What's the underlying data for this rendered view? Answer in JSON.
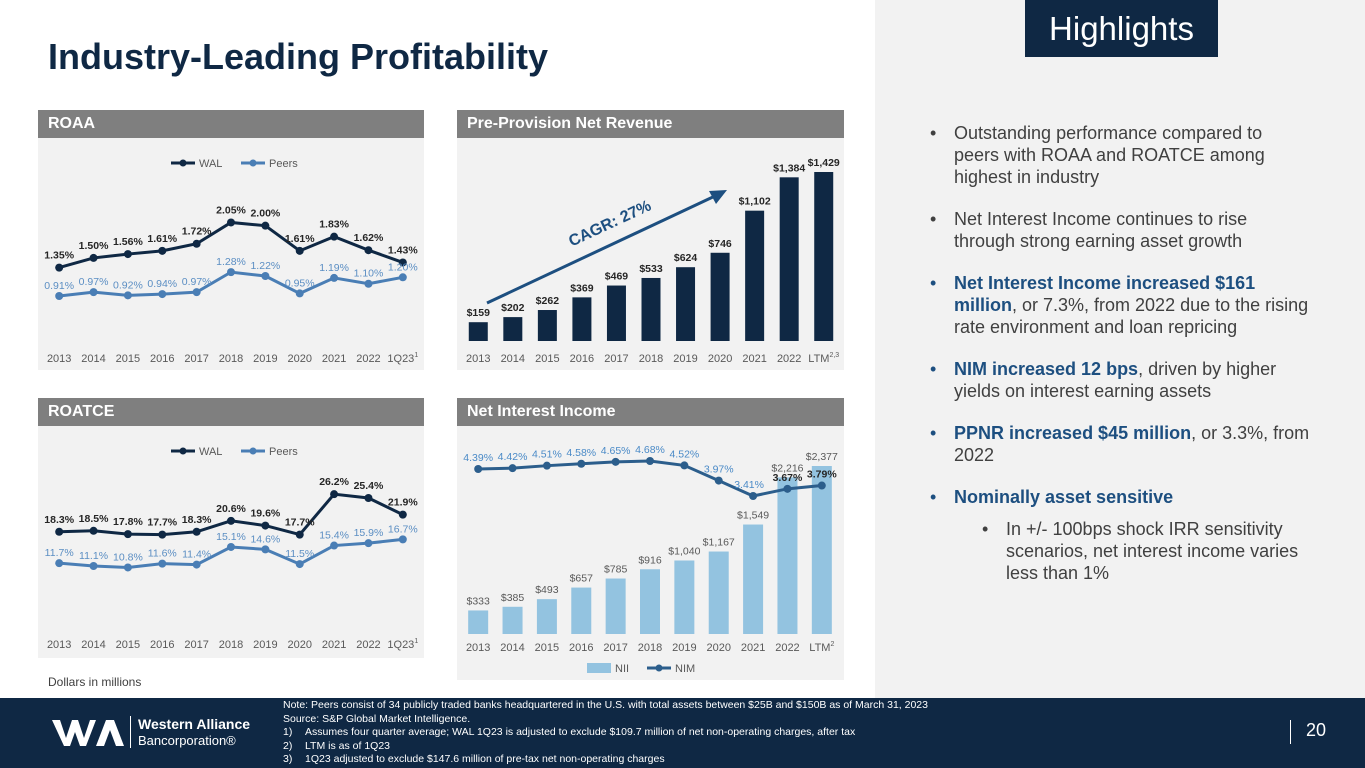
{
  "page": {
    "title": "Industry-Leading Profitability",
    "tag": "Highlights",
    "units_note": "Dollars in millions",
    "page_number": "20"
  },
  "colors": {
    "navy": "#0f2844",
    "wal_line": "#0f2844",
    "peers_line": "#4a7eb5",
    "peers_label": "#5b8ec3",
    "nii_bar": "#93c3e0",
    "nim_line": "#2c5e8c",
    "nim_label": "#4a8ac7",
    "panel_header": "#7f7f7f",
    "chart_bg": "#f2f2f2",
    "cagr": "#1d4f80"
  },
  "bullets": [
    {
      "bold": "",
      "text": "Outstanding performance compared to peers with ROAA and ROATCE among highest in industry"
    },
    {
      "bold": "",
      "text": "Net Interest Income continues to rise through strong earning asset growth"
    },
    {
      "bold": "Net Interest Income increased $161 million",
      "text": ", or 7.3%, from 2022 due to the rising rate environment and loan repricing"
    },
    {
      "bold": "NIM increased 12 bps",
      "text": ", driven by higher yields on interest earning assets"
    },
    {
      "bold": "PPNR increased $45 million",
      "text": ", or 3.3%, from 2022"
    },
    {
      "bold": "Nominally asset sensitive",
      "text": ""
    }
  ],
  "sub_bullet": "In +/- 100bps shock IRR sensitivity scenarios, net interest income varies less than 1%",
  "footer": {
    "company_line1": "Western Alliance",
    "company_line2": "Bancorporation®",
    "note_intro": "Note: Peers consist of 34 publicly traded banks headquartered in the U.S. with total assets between $25B and $150B as of March 31, 2023",
    "source": "Source: S&P Global Market Intelligence.",
    "notes": [
      {
        "num": "1)",
        "text": "Assumes four quarter average; WAL 1Q23 is adjusted to exclude $109.7 million of net non-operating charges, after tax"
      },
      {
        "num": "2)",
        "text": "LTM is as of 1Q23"
      },
      {
        "num": "3)",
        "text": "1Q23 adjusted to exclude $147.6 million of pre-tax net non-operating charges"
      }
    ]
  },
  "chart_data": [
    {
      "id": "roaa",
      "type": "line",
      "title": "ROAA",
      "categories": [
        "2013",
        "2014",
        "2015",
        "2016",
        "2017",
        "2018",
        "2019",
        "2020",
        "2021",
        "2022",
        "1Q23"
      ],
      "category_superscripts": {
        "10": "1"
      },
      "series": [
        {
          "name": "WAL",
          "values": [
            1.35,
            1.5,
            1.56,
            1.61,
            1.72,
            2.05,
            2.0,
            1.61,
            1.83,
            1.62,
            1.43
          ],
          "labels": [
            "1.35%",
            "1.50%",
            "1.56%",
            "1.61%",
            "1.72%",
            "2.05%",
            "2.00%",
            "1.61%",
            "1.83%",
            "1.62%",
            "1.43%"
          ]
        },
        {
          "name": "Peers",
          "values": [
            0.91,
            0.97,
            0.92,
            0.94,
            0.97,
            1.28,
            1.22,
            0.95,
            1.19,
            1.1,
            1.2
          ],
          "labels": [
            "0.91%",
            "0.97%",
            "0.92%",
            "0.94%",
            "0.97%",
            "1.28%",
            "1.22%",
            "0.95%",
            "1.19%",
            "1.10%",
            "1.20%"
          ]
        }
      ],
      "legend": "top-center"
    },
    {
      "id": "ppnr",
      "type": "bar",
      "title": "Pre-Provision Net Revenue",
      "categories": [
        "2013",
        "2014",
        "2015",
        "2016",
        "2017",
        "2018",
        "2019",
        "2020",
        "2021",
        "2022",
        "LTM"
      ],
      "category_superscripts": {
        "10": "2,3"
      },
      "values": [
        159,
        202,
        262,
        369,
        469,
        533,
        624,
        746,
        1102,
        1384,
        1429
      ],
      "labels": [
        "$159",
        "$202",
        "$262",
        "$369",
        "$469",
        "$533",
        "$624",
        "$746",
        "$1,102",
        "$1,384",
        "$1,429"
      ],
      "annotation": "CAGR: 27%"
    },
    {
      "id": "roatce",
      "type": "line",
      "title": "ROATCE",
      "categories": [
        "2013",
        "2014",
        "2015",
        "2016",
        "2017",
        "2018",
        "2019",
        "2020",
        "2021",
        "2022",
        "1Q23"
      ],
      "category_superscripts": {
        "10": "1"
      },
      "series": [
        {
          "name": "WAL",
          "values": [
            18.3,
            18.5,
            17.8,
            17.7,
            18.3,
            20.6,
            19.6,
            17.7,
            26.2,
            25.4,
            21.9
          ],
          "labels": [
            "18.3%",
            "18.5%",
            "17.8%",
            "17.7%",
            "18.3%",
            "20.6%",
            "19.6%",
            "17.7%",
            "26.2%",
            "25.4%",
            "21.9%"
          ]
        },
        {
          "name": "Peers",
          "values": [
            11.7,
            11.1,
            10.8,
            11.6,
            11.4,
            15.1,
            14.6,
            11.5,
            15.4,
            15.9,
            16.7
          ],
          "labels": [
            "11.7%",
            "11.1%",
            "10.8%",
            "11.6%",
            "11.4%",
            "15.1%",
            "14.6%",
            "11.5%",
            "15.4%",
            "15.9%",
            "16.7%"
          ]
        }
      ],
      "legend": "top-center"
    },
    {
      "id": "nii",
      "type": "bar",
      "title": "Net Interest Income",
      "categories": [
        "2013",
        "2014",
        "2015",
        "2016",
        "2017",
        "2018",
        "2019",
        "2020",
        "2021",
        "2022",
        "LTM"
      ],
      "category_superscripts": {
        "10": "2"
      },
      "series": [
        {
          "name": "NII",
          "type": "bar",
          "values": [
            333,
            385,
            493,
            657,
            785,
            916,
            1040,
            1167,
            1549,
            2216,
            2377
          ],
          "labels": [
            "$333",
            "$385",
            "$493",
            "$657",
            "$785",
            "$916",
            "$1,040",
            "$1,167",
            "$1,549",
            "$2,216",
            "$2,377"
          ]
        },
        {
          "name": "NIM",
          "type": "line",
          "values": [
            4.39,
            4.42,
            4.51,
            4.58,
            4.65,
            4.68,
            4.52,
            3.97,
            3.41,
            3.67,
            3.79
          ],
          "labels": [
            "4.39%",
            "4.42%",
            "4.51%",
            "4.58%",
            "4.65%",
            "4.68%",
            "4.52%",
            "3.97%",
            "3.41%",
            "3.67%",
            "3.79%"
          ]
        }
      ],
      "legend": "bottom-center"
    }
  ]
}
